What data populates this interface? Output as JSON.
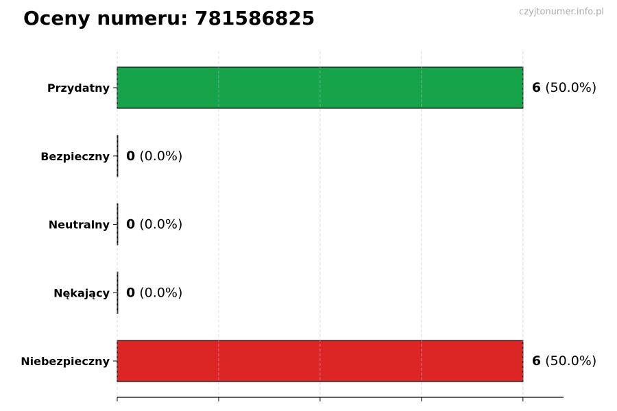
{
  "chart_data": {
    "type": "bar",
    "orientation": "horizontal",
    "title": "Oceny numeru: 781586825",
    "categories": [
      "Przydatny",
      "Bezpieczny",
      "Neutralny",
      "Nękający",
      "Niebezpieczny"
    ],
    "values": [
      6,
      0,
      0,
      0,
      6
    ],
    "percent_labels": [
      "(50.0%)",
      "(0.0%)",
      "(0.0%)",
      "(0.0%)",
      "(50.0%)"
    ],
    "colors": [
      "#16a34a",
      "#6b7280",
      "#9ca3af",
      "#f59e0b",
      "#dc2626"
    ],
    "xlim": [
      0,
      6.6
    ],
    "x_ticks": [
      0,
      1.5,
      3,
      4.5,
      6
    ],
    "x_tick_labels_shown": false,
    "grid": "x, dashed",
    "xlabel": "",
    "ylabel": ""
  },
  "watermark": "czyjtonumer.info.pl"
}
